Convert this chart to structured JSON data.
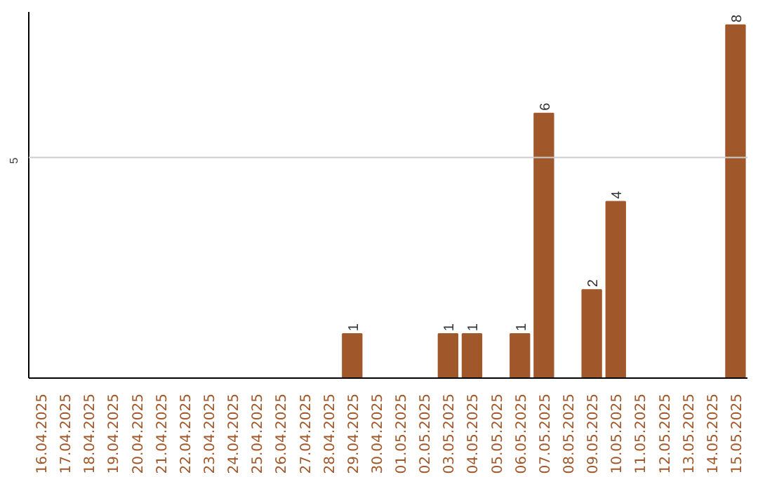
{
  "chart_data": {
    "type": "bar",
    "categories": [
      "16.04.2025",
      "17.04.2025",
      "18.04.2025",
      "19.04.2025",
      "20.04.2025",
      "21.04.2025",
      "22.04.2025",
      "23.04.2025",
      "24.04.2025",
      "25.04.2025",
      "26.04.2025",
      "27.04.2025",
      "28.04.2025",
      "29.04.2025",
      "30.04.2025",
      "01.05.2025",
      "02.05.2025",
      "03.05.2025",
      "04.05.2025",
      "05.05.2025",
      "06.05.2025",
      "07.05.2025",
      "08.05.2025",
      "09.05.2025",
      "10.05.2025",
      "11.05.2025",
      "12.05.2025",
      "13.05.2025",
      "14.05.2025",
      "15.05.2025"
    ],
    "values": [
      null,
      null,
      null,
      null,
      null,
      null,
      null,
      null,
      null,
      null,
      null,
      null,
      null,
      1,
      null,
      null,
      null,
      1,
      1,
      null,
      1,
      6,
      null,
      2,
      4,
      null,
      null,
      null,
      null,
      8
    ],
    "data_labels": true,
    "ylim": [
      0,
      8.3
    ],
    "color": "#a0572a",
    "ref_lines": [
      {
        "axis": "y",
        "value": 5,
        "label": "5",
        "color": "#cccccc"
      }
    ]
  }
}
